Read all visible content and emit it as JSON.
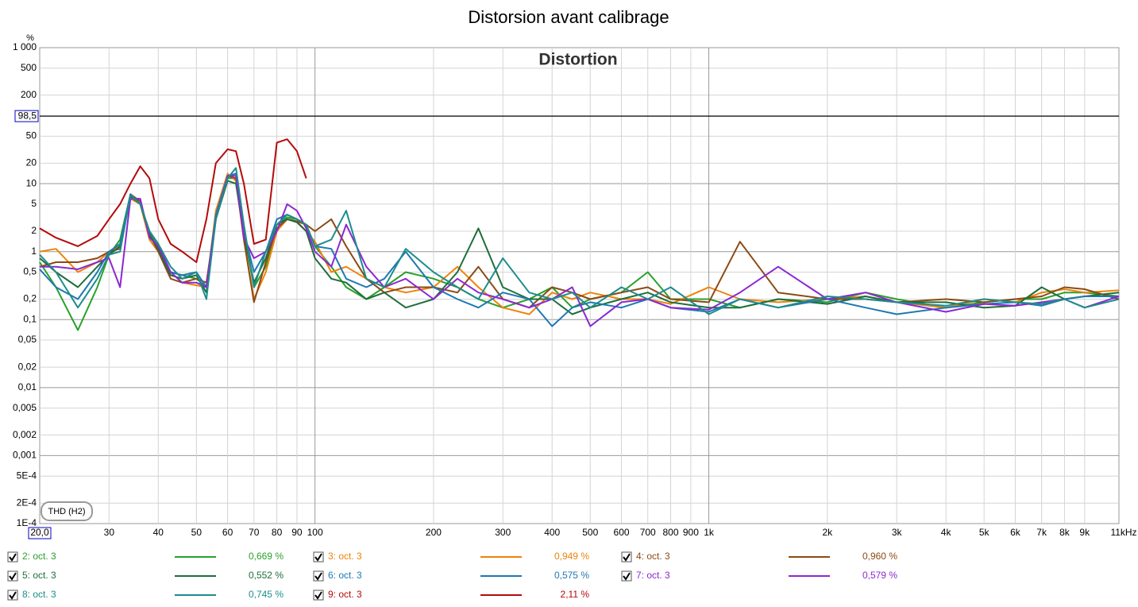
{
  "chart_data": {
    "type": "line",
    "title": "Distorsion avant calibrage",
    "subtitle": "Distortion",
    "y_label": "%",
    "annotation": "THD (H2)",
    "log_x": true,
    "log_y": true,
    "grid": true,
    "cursor_x": {
      "value": 20,
      "label": "20,0"
    },
    "cursor_y": {
      "value": 98.5,
      "label": "98,5"
    },
    "xlim": [
      20,
      11000
    ],
    "ylim": [
      0.0001,
      1000
    ],
    "xticks": [
      30,
      40,
      50,
      60,
      70,
      80,
      90,
      100,
      200,
      300,
      400,
      500,
      600,
      700,
      800,
      900,
      {
        "value": 1000,
        "label": "1k"
      },
      {
        "value": 2000,
        "label": "2k"
      },
      {
        "value": 3000,
        "label": "3k"
      },
      {
        "value": 4000,
        "label": "4k"
      },
      {
        "value": 5000,
        "label": "5k"
      },
      {
        "value": 6000,
        "label": "6k"
      },
      {
        "value": 7000,
        "label": "7k"
      },
      {
        "value": 8000,
        "label": "8k"
      },
      {
        "value": 9000,
        "label": "9k"
      },
      {
        "value": 11000,
        "label": "11kHz"
      }
    ],
    "yticks": [
      {
        "value": 1000,
        "label": "1 000"
      },
      500,
      200,
      50,
      20,
      10,
      5,
      2,
      1,
      {
        "value": 0.5,
        "label": "0,5"
      },
      {
        "value": 0.2,
        "label": "0,2"
      },
      {
        "value": 0.1,
        "label": "0,1"
      },
      {
        "value": 0.05,
        "label": "0,05"
      },
      {
        "value": 0.02,
        "label": "0,02"
      },
      {
        "value": 0.01,
        "label": "0,01"
      },
      {
        "value": 0.005,
        "label": "0,005"
      },
      {
        "value": 0.002,
        "label": "0,002"
      },
      {
        "value": 0.001,
        "label": "0,001"
      },
      {
        "value": 0.0005,
        "label": "5E-4"
      },
      {
        "value": 0.0002,
        "label": "2E-4"
      },
      {
        "value": 0.0001,
        "label": "1E-4"
      }
    ],
    "x": [
      20,
      22,
      25,
      28,
      30,
      32,
      34,
      36,
      38,
      40,
      43,
      46,
      50,
      53,
      56,
      60,
      63,
      66,
      70,
      75,
      80,
      85,
      90,
      95,
      100,
      110,
      120,
      135,
      150,
      170,
      200,
      230,
      260,
      300,
      350,
      400,
      450,
      500,
      600,
      700,
      800,
      1000,
      1200,
      1500,
      2000,
      2500,
      3000,
      4000,
      5000,
      6000,
      7000,
      8000,
      9000,
      11000
    ],
    "series": [
      {
        "name": "2: oct. 3",
        "legend_value": "0,669 %",
        "color": "#2aa02a",
        "values": [
          0.7,
          0.3,
          0.07,
          0.3,
          0.9,
          1.5,
          7,
          5,
          2,
          1.2,
          0.5,
          0.45,
          0.4,
          0.3,
          3,
          12,
          12,
          2,
          0.3,
          0.6,
          2.5,
          3.2,
          3,
          2.5,
          1.2,
          0.6,
          0.3,
          0.2,
          0.3,
          0.5,
          0.4,
          0.3,
          0.2,
          0.15,
          0.2,
          0.3,
          0.15,
          0.2,
          0.25,
          0.5,
          0.2,
          0.2,
          0.15,
          0.2,
          0.18,
          0.25,
          0.2,
          0.15,
          0.18,
          0.2,
          0.2,
          0.25,
          0.25,
          0.22
        ]
      },
      {
        "name": "3: oct. 3",
        "legend_value": "0,949 %",
        "color": "#f0820a",
        "values": [
          1.0,
          1.1,
          0.5,
          0.7,
          1.0,
          1.2,
          6,
          5,
          1.5,
          1.0,
          0.5,
          0.35,
          0.32,
          0.3,
          4,
          14,
          11,
          1.5,
          0.2,
          0.5,
          2,
          3,
          2.8,
          2,
          1.4,
          0.5,
          0.6,
          0.4,
          0.3,
          0.25,
          0.3,
          0.6,
          0.3,
          0.15,
          0.12,
          0.25,
          0.2,
          0.25,
          0.2,
          0.2,
          0.17,
          0.3,
          0.2,
          0.18,
          0.2,
          0.22,
          0.18,
          0.15,
          0.2,
          0.18,
          0.25,
          0.28,
          0.25,
          0.27
        ]
      },
      {
        "name": "4: oct. 3",
        "legend_value": "0,960 %",
        "color": "#8c4a14",
        "values": [
          0.6,
          0.7,
          0.7,
          0.8,
          1.0,
          1.1,
          7,
          5.5,
          1.8,
          1.0,
          0.4,
          0.35,
          0.4,
          0.35,
          3,
          13,
          12,
          1.5,
          0.18,
          0.7,
          2.2,
          3,
          2.8,
          2.5,
          2,
          3,
          1.2,
          0.4,
          0.25,
          0.3,
          0.3,
          0.25,
          0.6,
          0.2,
          0.15,
          0.3,
          0.25,
          0.2,
          0.25,
          0.3,
          0.2,
          0.18,
          1.4,
          0.25,
          0.2,
          0.2,
          0.18,
          0.2,
          0.18,
          0.2,
          0.22,
          0.3,
          0.28,
          0.2
        ]
      },
      {
        "name": "5: oct. 3",
        "legend_value": "0,552 %",
        "color": "#1e6e3c",
        "values": [
          0.8,
          0.5,
          0.3,
          0.6,
          0.9,
          1.2,
          6.5,
          5,
          1.8,
          1.1,
          0.45,
          0.4,
          0.45,
          0.25,
          3,
          11,
          10,
          1.8,
          0.35,
          0.8,
          2.5,
          3,
          2.7,
          2,
          0.8,
          0.4,
          0.35,
          0.2,
          0.25,
          0.15,
          0.2,
          0.5,
          2.2,
          0.3,
          0.2,
          0.2,
          0.12,
          0.15,
          0.2,
          0.25,
          0.18,
          0.15,
          0.15,
          0.2,
          0.17,
          0.22,
          0.18,
          0.18,
          0.15,
          0.16,
          0.3,
          0.2,
          0.22,
          0.25
        ]
      },
      {
        "name": "6: oct. 3",
        "legend_value": "0,575 %",
        "color": "#1e78b4",
        "values": [
          0.55,
          0.3,
          0.2,
          0.5,
          1.0,
          1.3,
          7,
          5,
          2,
          1.3,
          0.5,
          0.45,
          0.5,
          0.3,
          3.5,
          13,
          14,
          2,
          0.5,
          1.0,
          3,
          3.5,
          3,
          2.5,
          1.2,
          1.1,
          0.4,
          0.3,
          0.4,
          1.0,
          0.3,
          0.2,
          0.15,
          0.25,
          0.2,
          0.08,
          0.15,
          0.18,
          0.15,
          0.2,
          0.15,
          0.13,
          0.2,
          0.15,
          0.2,
          0.15,
          0.12,
          0.15,
          0.17,
          0.18,
          0.16,
          0.2,
          0.22,
          0.22
        ]
      },
      {
        "name": "7: oct. 3",
        "legend_value": "0,579 %",
        "color": "#8c28d2",
        "values": [
          0.6,
          0.6,
          0.55,
          0.7,
          0.8,
          0.3,
          6,
          6,
          1.6,
          1.2,
          0.5,
          0.35,
          0.35,
          0.3,
          3,
          13,
          13,
          1.6,
          0.8,
          1.0,
          2,
          5,
          4,
          2.2,
          1.0,
          0.6,
          2.5,
          0.6,
          0.3,
          0.4,
          0.2,
          0.4,
          0.25,
          0.2,
          0.15,
          0.2,
          0.3,
          0.08,
          0.18,
          0.2,
          0.15,
          0.14,
          0.25,
          0.6,
          0.2,
          0.25,
          0.18,
          0.13,
          0.17,
          0.16,
          0.18,
          0.2,
          0.15,
          0.22
        ]
      },
      {
        "name": "8: oct. 3",
        "legend_value": "0,745 %",
        "color": "#1e8c8c",
        "values": [
          0.9,
          0.5,
          0.15,
          0.4,
          0.9,
          1.0,
          6.8,
          5,
          2,
          1.3,
          0.6,
          0.4,
          0.5,
          0.2,
          3,
          12,
          17,
          2.5,
          0.3,
          1.0,
          2.5,
          3.5,
          3,
          2.5,
          1.2,
          1.5,
          4,
          0.4,
          0.3,
          1.1,
          0.5,
          0.3,
          0.2,
          0.8,
          0.25,
          0.2,
          0.25,
          0.15,
          0.3,
          0.2,
          0.3,
          0.12,
          0.2,
          0.15,
          0.22,
          0.2,
          0.18,
          0.16,
          0.2,
          0.18,
          0.17,
          0.2,
          0.15,
          0.2
        ]
      },
      {
        "name": "9: oct. 3",
        "legend_value": "2,11 %",
        "color": "#b40a0a",
        "values": [
          2.2,
          1.6,
          1.2,
          1.7,
          3,
          5,
          10,
          18,
          12,
          3,
          1.3,
          1.0,
          0.7,
          3,
          20,
          32,
          30,
          10,
          1.3,
          1.5,
          40,
          45,
          30,
          12,
          null,
          null,
          null,
          null,
          null,
          null,
          null,
          null,
          null,
          null,
          null,
          null,
          null,
          null,
          null,
          null,
          null,
          null,
          null,
          null,
          null,
          null,
          null,
          null,
          null,
          null,
          null,
          null,
          null,
          null
        ]
      }
    ]
  }
}
